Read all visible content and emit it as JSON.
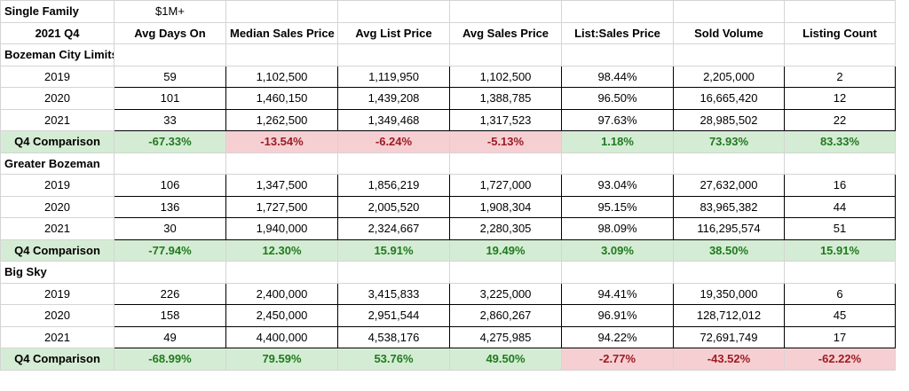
{
  "header": {
    "category": "Single Family",
    "price_band": "$1M+",
    "period": "2021 Q4",
    "columns": [
      "Avg Days On",
      "Median Sales Price",
      "Avg List Price",
      "Avg Sales Price",
      "List:Sales Price",
      "Sold Volume",
      "Listing Count"
    ]
  },
  "colors": {
    "positive_bg": "#d5ecd4",
    "positive_text": "#1f7a1f",
    "negative_bg": "#f6cfd3",
    "negative_text": "#9c1c22"
  },
  "sections": [
    {
      "name": "Bozeman City Limits",
      "rows": [
        {
          "year": "2019",
          "values": [
            "59",
            "1,102,500",
            "1,119,950",
            "1,102,500",
            "98.44%",
            "2,205,000",
            "2"
          ]
        },
        {
          "year": "2020",
          "values": [
            "101",
            "1,460,150",
            "1,439,208",
            "1,388,785",
            "96.50%",
            "16,665,420",
            "12"
          ]
        },
        {
          "year": "2021",
          "values": [
            "33",
            "1,262,500",
            "1,349,468",
            "1,317,523",
            "97.63%",
            "28,985,502",
            "22"
          ]
        }
      ],
      "comparison": {
        "label": "Q4 Comparison",
        "values": [
          "-67.33%",
          "-13.54%",
          "-6.24%",
          "-5.13%",
          "1.18%",
          "73.93%",
          "83.33%"
        ],
        "sentiment": [
          "pos",
          "neg",
          "neg",
          "neg",
          "pos",
          "pos",
          "pos"
        ]
      }
    },
    {
      "name": "Greater Bozeman",
      "rows": [
        {
          "year": "2019",
          "values": [
            "106",
            "1,347,500",
            "1,856,219",
            "1,727,000",
            "93.04%",
            "27,632,000",
            "16"
          ]
        },
        {
          "year": "2020",
          "values": [
            "136",
            "1,727,500",
            "2,005,520",
            "1,908,304",
            "95.15%",
            "83,965,382",
            "44"
          ]
        },
        {
          "year": "2021",
          "values": [
            "30",
            "1,940,000",
            "2,324,667",
            "2,280,305",
            "98.09%",
            "116,295,574",
            "51"
          ]
        }
      ],
      "comparison": {
        "label": "Q4 Comparison",
        "values": [
          "-77.94%",
          "12.30%",
          "15.91%",
          "19.49%",
          "3.09%",
          "38.50%",
          "15.91%"
        ],
        "sentiment": [
          "pos",
          "pos",
          "pos",
          "pos",
          "pos",
          "pos",
          "pos"
        ]
      }
    },
    {
      "name": "Big Sky",
      "rows": [
        {
          "year": "2019",
          "values": [
            "226",
            "2,400,000",
            "3,415,833",
            "3,225,000",
            "94.41%",
            "19,350,000",
            "6"
          ]
        },
        {
          "year": "2020",
          "values": [
            "158",
            "2,450,000",
            "2,951,544",
            "2,860,267",
            "96.91%",
            "128,712,012",
            "45"
          ]
        },
        {
          "year": "2021",
          "values": [
            "49",
            "4,400,000",
            "4,538,176",
            "4,275,985",
            "94.22%",
            "72,691,749",
            "17"
          ]
        }
      ],
      "comparison": {
        "label": "Q4 Comparison",
        "values": [
          "-68.99%",
          "79.59%",
          "53.76%",
          "49.50%",
          "-2.77%",
          "-43.52%",
          "-62.22%"
        ],
        "sentiment": [
          "pos",
          "pos",
          "pos",
          "pos",
          "neg",
          "neg",
          "neg"
        ]
      }
    }
  ]
}
